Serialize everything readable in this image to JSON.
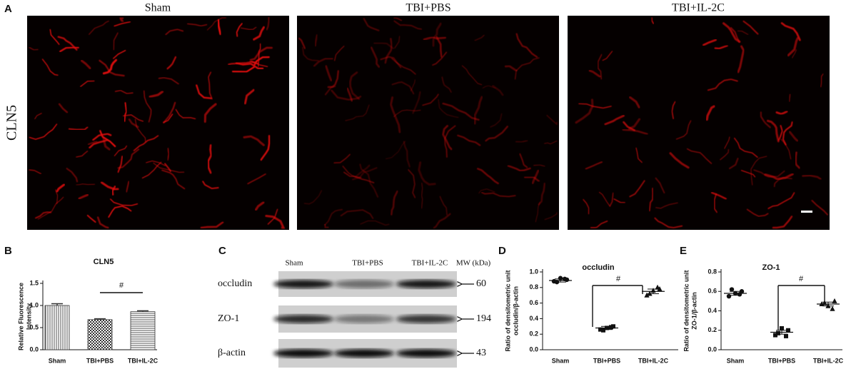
{
  "panel_a": {
    "label": "A",
    "row_label": "CLN5",
    "columns": [
      "Sham",
      "TBI+PBS",
      "TBI+IL-2C"
    ]
  },
  "panel_c": {
    "label": "C",
    "lanes": [
      "Sham",
      "TBI+PBS",
      "TBI+IL-2C"
    ],
    "mw_header": "MW (kDa)",
    "bands": [
      {
        "name": "occludin",
        "mw": 60
      },
      {
        "name": "ZO-1",
        "mw": 194
      },
      {
        "name": "β-actin",
        "mw": 43
      }
    ]
  },
  "chart_data": [
    {
      "type": "bar",
      "panel": "B",
      "title": "CLN5",
      "ylabel": [
        "Relative Fluorescence",
        "Intensity"
      ],
      "categories": [
        "Sham",
        "TBI+PBS",
        "TBI+IL-2C"
      ],
      "values": [
        1.0,
        0.68,
        0.86
      ],
      "errors": [
        0.04,
        0.02,
        0.02
      ],
      "patterns": [
        "vertical",
        "checker",
        "horizontal"
      ],
      "annotation": "#",
      "ylim": [
        0,
        1.5
      ],
      "yticks": [
        {
          "value": 0,
          "label": "0.0"
        },
        0.5,
        {
          "value": 1,
          "label": "1.0"
        },
        1.5
      ]
    },
    {
      "type": "dot",
      "panel": "D",
      "title": "occludin",
      "ylabel": [
        "Ratio of densitometric unit",
        "occludin/β-actin"
      ],
      "categories": [
        "Sham",
        "TBI+PBS",
        "TBI+IL-2C"
      ],
      "markers": [
        "circle",
        "square",
        "triangle"
      ],
      "points": [
        [
          0.88,
          0.9,
          0.92,
          0.87,
          0.91
        ],
        [
          0.26,
          0.3,
          0.28,
          0.25,
          0.29
        ],
        [
          0.7,
          0.78,
          0.76,
          0.72,
          0.8
        ]
      ],
      "means": [
        0.89,
        0.28,
        0.75
      ],
      "errors": [
        0.02,
        0.02,
        0.03
      ],
      "annotation": "#",
      "ylim": [
        0,
        1.0
      ],
      "yticks": [
        {
          "value": 0,
          "label": "0.0"
        },
        0.2,
        0.4,
        0.6,
        0.8,
        {
          "value": 1,
          "label": "1.0"
        }
      ]
    },
    {
      "type": "dot",
      "panel": "E",
      "title": "ZO-1",
      "ylabel": [
        "Ratio of densitometric unit",
        "ZO-1/β-actin"
      ],
      "categories": [
        "Sham",
        "TBI+PBS",
        "TBI+IL-2C"
      ],
      "markers": [
        "circle",
        "square",
        "triangle"
      ],
      "points": [
        [
          0.55,
          0.6,
          0.58,
          0.62,
          0.57
        ],
        [
          0.15,
          0.2,
          0.22,
          0.17,
          0.14
        ],
        [
          0.47,
          0.5,
          0.45,
          0.48,
          0.42
        ]
      ],
      "means": [
        0.58,
        0.18,
        0.47
      ],
      "errors": [
        0.02,
        0.02,
        0.02
      ],
      "annotation": "#",
      "ylim": [
        0,
        0.8
      ],
      "yticks": [
        {
          "value": 0,
          "label": "0.0"
        },
        0.2,
        0.4,
        0.6,
        0.8
      ]
    }
  ]
}
